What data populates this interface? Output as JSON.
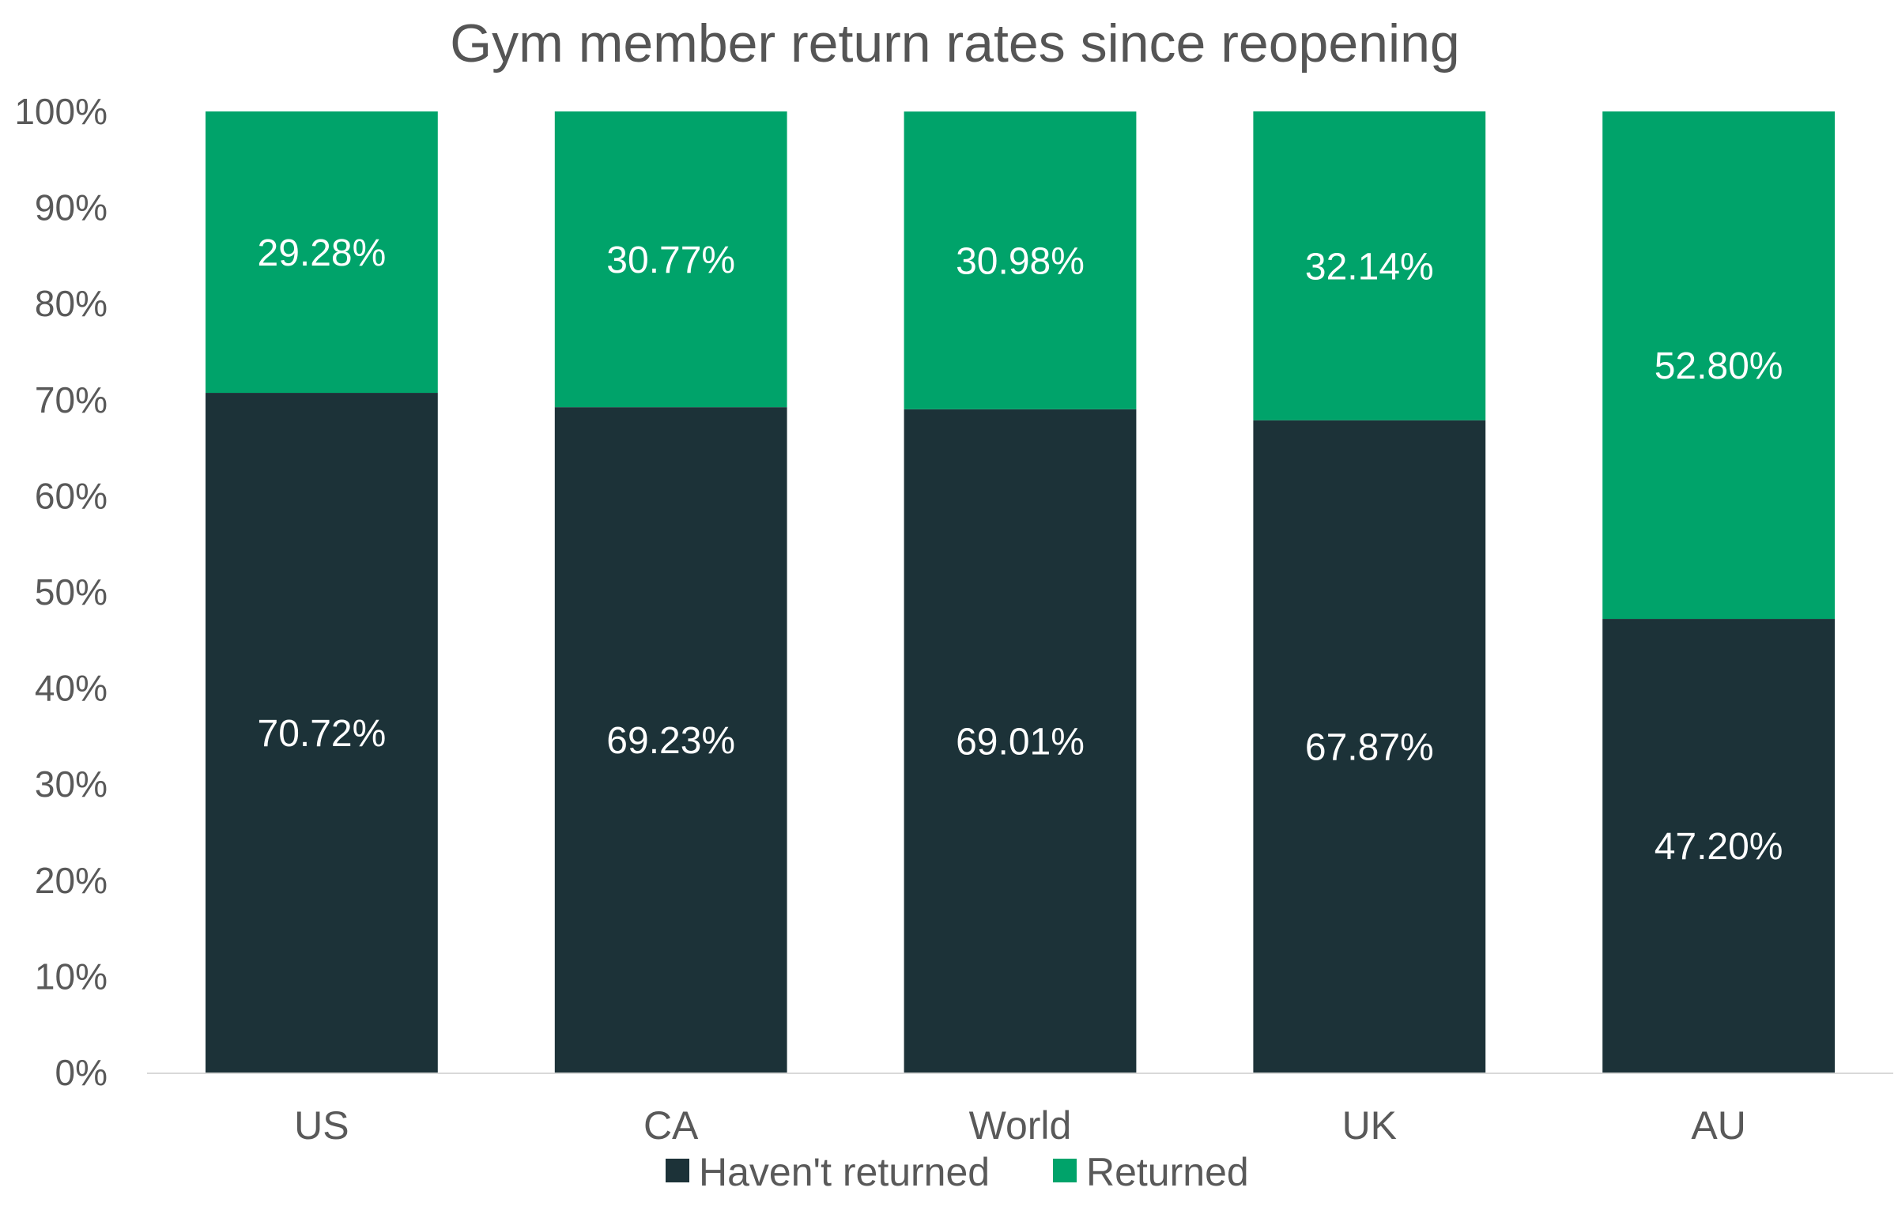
{
  "chart_data": {
    "type": "bar",
    "stacked": true,
    "title": "Gym member return rates since reopening",
    "xlabel": "",
    "ylabel": "",
    "ylim": [
      0,
      100
    ],
    "yticks": [
      "0%",
      "10%",
      "20%",
      "30%",
      "40%",
      "50%",
      "60%",
      "70%",
      "80%",
      "90%",
      "100%"
    ],
    "categories": [
      "US",
      "CA",
      "World",
      "UK",
      "AU"
    ],
    "series": [
      {
        "name": "Haven't returned",
        "color": "#1c3238",
        "values": [
          70.72,
          69.23,
          69.01,
          67.87,
          47.2
        ],
        "labels": [
          "70.72%",
          "69.23%",
          "69.01%",
          "67.87%",
          "47.20%"
        ]
      },
      {
        "name": "Returned",
        "color": "#00a36a",
        "values": [
          29.28,
          30.77,
          30.98,
          32.14,
          52.8
        ],
        "labels": [
          "29.28%",
          "30.77%",
          "30.98%",
          "32.14%",
          "52.80%"
        ]
      }
    ],
    "grid": false,
    "legend": "bottom"
  }
}
